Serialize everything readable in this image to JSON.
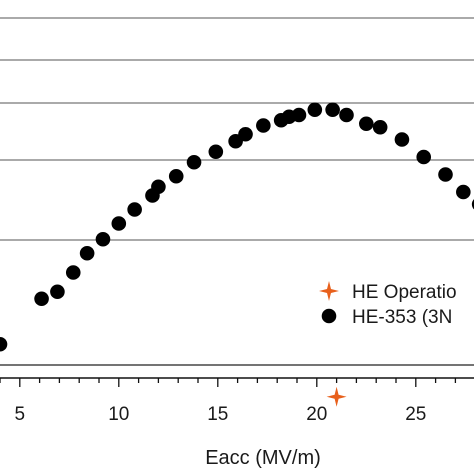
{
  "chart_data": {
    "type": "scatter",
    "xlabel": "Eacc (MV/m)",
    "ylabel": "",
    "xlim": [
      4,
      28.3
    ],
    "xticks": [
      5,
      10,
      15,
      20,
      25
    ],
    "xticklabels": [
      "5",
      "10",
      "15",
      "20",
      "25"
    ],
    "grid": "horizontal",
    "legend_position": "bottom-right",
    "series": [
      {
        "name": "HE Operatio",
        "marker": "star",
        "color": "#e8601c",
        "x": [
          21.0
        ],
        "y": [
          -0.45
        ]
      },
      {
        "name": "HE-353 (3N",
        "marker": "circle",
        "color": "#000000",
        "x": [
          4.0,
          6.1,
          6.9,
          7.7,
          8.4,
          9.2,
          10.0,
          10.8,
          11.7,
          12.0,
          12.9,
          13.8,
          14.9,
          15.9,
          16.4,
          17.3,
          18.2,
          18.6,
          19.1,
          19.9,
          20.8,
          21.5,
          22.5,
          23.2,
          24.3,
          25.4,
          26.5,
          27.4,
          28.2
        ],
        "y": [
          -0.15,
          0.11,
          0.15,
          0.26,
          0.37,
          0.45,
          0.54,
          0.62,
          0.7,
          0.75,
          0.81,
          0.89,
          0.95,
          1.01,
          1.05,
          1.1,
          1.13,
          1.15,
          1.16,
          1.19,
          1.19,
          1.16,
          1.11,
          1.09,
          1.02,
          0.92,
          0.82,
          0.72,
          0.65
        ]
      }
    ]
  }
}
